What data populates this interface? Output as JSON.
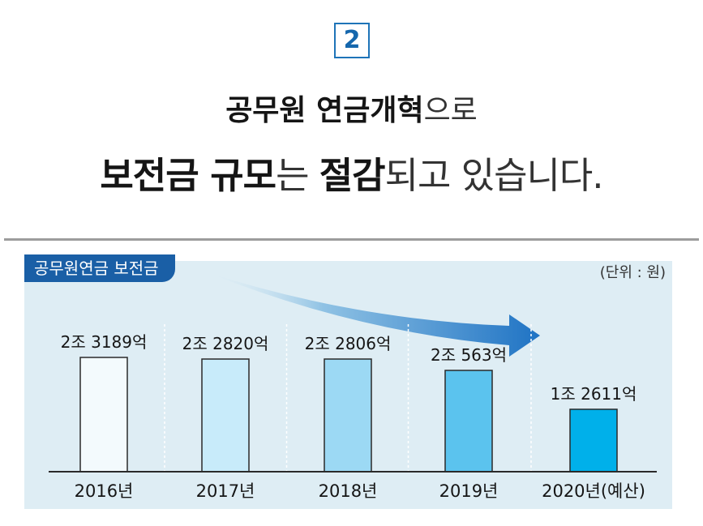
{
  "badge": {
    "number": "2"
  },
  "headline": {
    "line1_bold": "공무원 연금개혁",
    "line1_light": "으로",
    "line2_part1_bold": "보전금 규모",
    "line2_part2_light": "는 ",
    "line2_part3_bold": "절감",
    "line2_part4_light": "되고 있습니다."
  },
  "chart_meta": {
    "tag": "공무원연금 보전금",
    "unit": "(단위 : 원)"
  },
  "colors": {
    "accent_blue": "#1a5fa6",
    "panel_bg": "#deedf4",
    "bar_colors": [
      "#f3fafd",
      "#c8ebfa",
      "#9cd9f4",
      "#5bc3ee",
      "#00b0ea"
    ]
  },
  "chart_data": {
    "type": "bar",
    "title": "공무원연금 보전금",
    "unit_label": "(단위 : 원)",
    "categories": [
      "2016년",
      "2017년",
      "2018년",
      "2019년",
      "2020년(예산)"
    ],
    "values": [
      23189,
      22820,
      22806,
      20563,
      12611
    ],
    "value_unit": "억원",
    "value_labels": [
      "2조 3189억",
      "2조 2820억",
      "2조 2806억",
      "2조 563억",
      "1조 2611억"
    ],
    "ylim": [
      0,
      23189
    ],
    "trend_arrow": "down-right",
    "grid": false,
    "xlabel": "",
    "ylabel": ""
  }
}
